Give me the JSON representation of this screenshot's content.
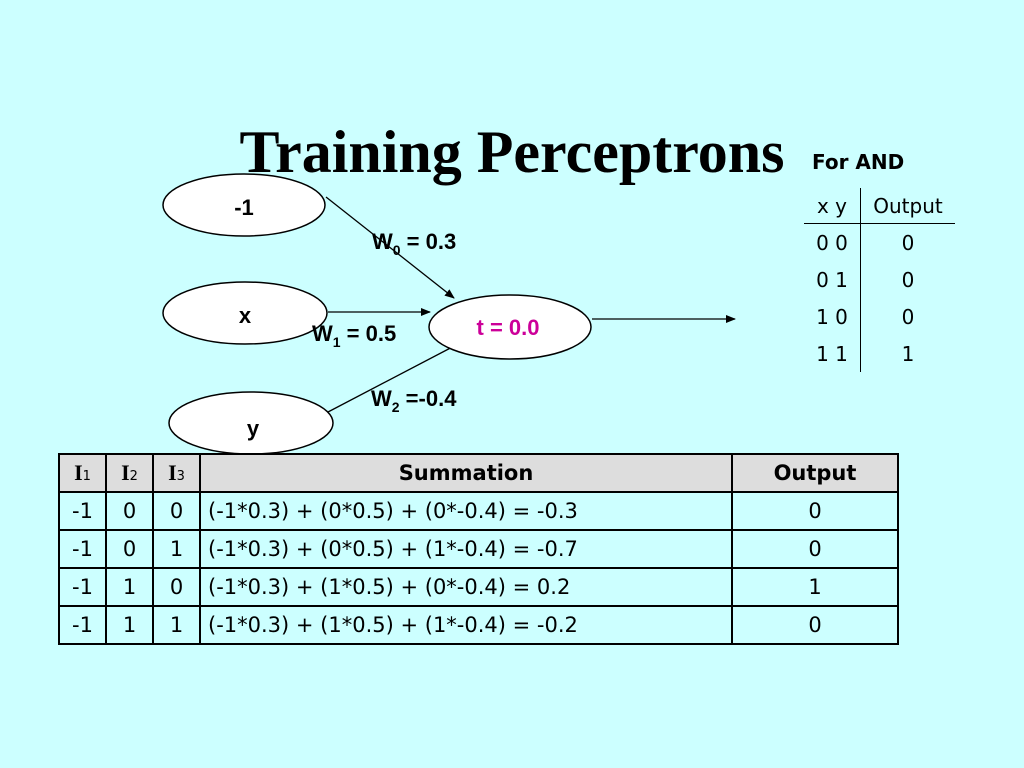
{
  "title": "Training Perceptrons",
  "diagram": {
    "inputs": [
      {
        "label": "-1"
      },
      {
        "label": "x"
      },
      {
        "label": "y"
      }
    ],
    "weights": [
      {
        "symbol": "W",
        "index": "0",
        "text": " = 0.3"
      },
      {
        "symbol": "W",
        "index": "1",
        "text": " = 0.5"
      },
      {
        "symbol": "W",
        "index": "2",
        "text": " =-0.4"
      }
    ],
    "threshold": "t = 0.0",
    "colors": {
      "threshold": "#cc0099",
      "node_fill": "#ffffff",
      "background": "#ccffff"
    }
  },
  "and_table": {
    "caption": "For AND",
    "headers": [
      "x y",
      "Output"
    ],
    "rows": [
      [
        "0 0",
        "0"
      ],
      [
        "0 1",
        "0"
      ],
      [
        "1 0",
        "0"
      ],
      [
        "1 1",
        "1"
      ]
    ]
  },
  "calc_table": {
    "headers": [
      {
        "symbol": "I",
        "sub": "1"
      },
      {
        "symbol": "I",
        "sub": "2"
      },
      {
        "symbol": "I",
        "sub": "3"
      },
      {
        "text": "Summation"
      },
      {
        "text": "Output"
      }
    ],
    "rows": [
      [
        "-1",
        "0",
        "0",
        "(-1*0.3) + (0*0.5) + (0*-0.4) = -0.3",
        "0"
      ],
      [
        "-1",
        "0",
        "1",
        "(-1*0.3) + (0*0.5) + (1*-0.4) = -0.7",
        "0"
      ],
      [
        "-1",
        "1",
        "0",
        "(-1*0.3) + (1*0.5) + (0*-0.4) = 0.2",
        "1"
      ],
      [
        "-1",
        "1",
        "1",
        "(-1*0.3) + (1*0.5) + (1*-0.4) = -0.2",
        "0"
      ]
    ]
  }
}
